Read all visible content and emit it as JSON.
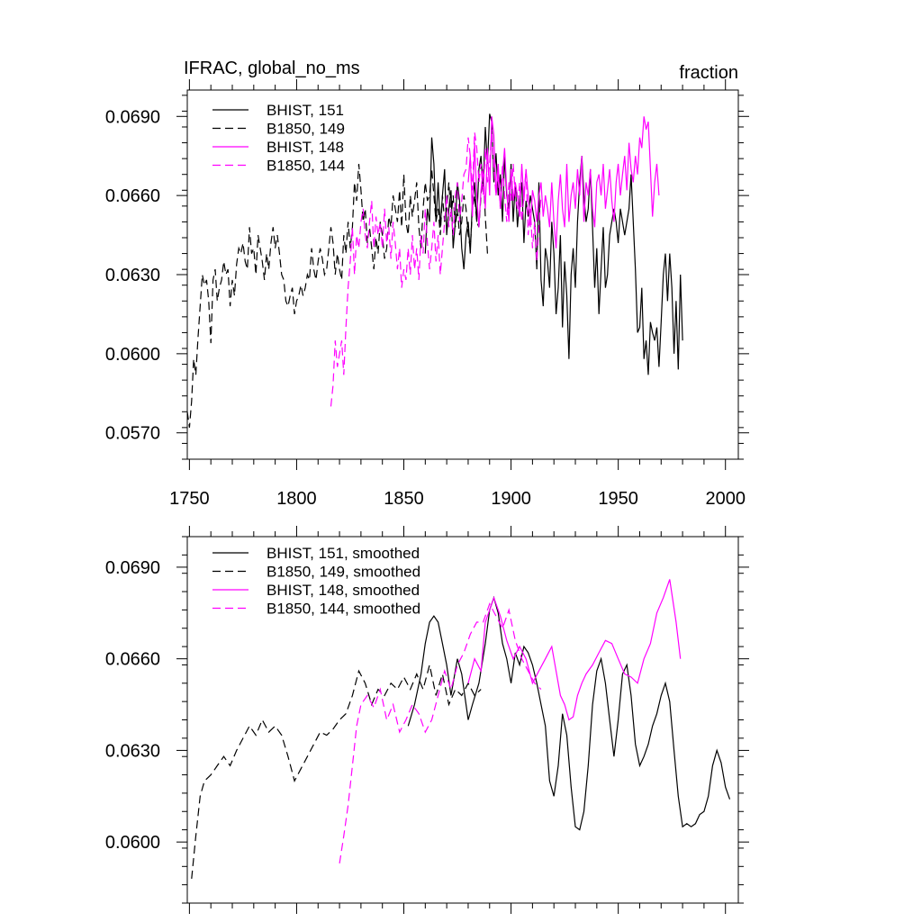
{
  "chart_data": [
    {
      "type": "line",
      "title_left": "IFRAC, global_no_ms",
      "title_right": "fraction",
      "xlabel": "",
      "ylabel": "",
      "xlim": [
        1749,
        2006
      ],
      "ylim": [
        0.056,
        0.07
      ],
      "xticks": [
        1750,
        1800,
        1850,
        1900,
        1950,
        2000
      ],
      "xtick_labels": [
        "1750",
        "1800",
        "1850",
        "1900",
        "1950",
        "2000"
      ],
      "yticks": [
        0.057,
        0.06,
        0.063,
        0.066,
        0.069
      ],
      "ytick_labels": [
        "0.0570",
        "0.0600",
        "0.0630",
        "0.0660",
        "0.0690"
      ],
      "legend_position": "top-left",
      "series": [
        {
          "name": "BHIST, 151",
          "color": "#000000",
          "dash": "solid",
          "x_start": 1860,
          "values": [
            0.0638,
            0.0655,
            0.065,
            0.0682,
            0.0672,
            0.065,
            0.0665,
            0.0648,
            0.066,
            0.067,
            0.0645,
            0.0655,
            0.0662,
            0.064,
            0.065,
            0.0665,
            0.0658,
            0.064,
            0.0632,
            0.0645,
            0.065,
            0.0638,
            0.0658,
            0.0665,
            0.065,
            0.067,
            0.0675,
            0.0662,
            0.0686,
            0.0672,
            0.0691,
            0.0688,
            0.0665,
            0.0676,
            0.066,
            0.0668,
            0.065,
            0.0675,
            0.066,
            0.0655,
            0.0672,
            0.065,
            0.0665,
            0.0648,
            0.0658,
            0.0665,
            0.0642,
            0.0658,
            0.0652,
            0.066,
            0.0655,
            0.065,
            0.0632,
            0.0665,
            0.0628,
            0.0618,
            0.064,
            0.0635,
            0.0625,
            0.065,
            0.0638,
            0.0615,
            0.0625,
            0.0645,
            0.061,
            0.0635,
            0.0622,
            0.0598,
            0.063,
            0.064,
            0.0625,
            0.065,
            0.0665,
            0.0675,
            0.066,
            0.065,
            0.0655,
            0.067,
            0.0648,
            0.0625,
            0.064,
            0.0615,
            0.0632,
            0.0648,
            0.0625,
            0.063,
            0.0645,
            0.065,
            0.0655,
            0.065,
            0.0642,
            0.0655,
            0.065,
            0.0645,
            0.065,
            0.0655,
            0.0668,
            0.065,
            0.0632,
            0.0608,
            0.061,
            0.0625,
            0.0598,
            0.0605,
            0.0592,
            0.0612,
            0.0608,
            0.0605,
            0.061,
            0.0595,
            0.0612,
            0.063,
            0.0638,
            0.062,
            0.0638,
            0.0625,
            0.06,
            0.062,
            0.0594,
            0.063,
            0.0605
          ]
        },
        {
          "name": "B1850, 149",
          "color": "#000000",
          "dash": "dash",
          "x_start": 1749,
          "values": [
            0.0578,
            0.0572,
            0.0582,
            0.0598,
            0.0592,
            0.0606,
            0.0618,
            0.063,
            0.0626,
            0.0628,
            0.062,
            0.0604,
            0.0628,
            0.0632,
            0.062,
            0.0625,
            0.0628,
            0.0635,
            0.063,
            0.0632,
            0.0618,
            0.0628,
            0.0622,
            0.0634,
            0.064,
            0.0638,
            0.0642,
            0.0635,
            0.0632,
            0.0648,
            0.0638,
            0.064,
            0.063,
            0.0645,
            0.064,
            0.0635,
            0.0628,
            0.0638,
            0.0632,
            0.0642,
            0.0648,
            0.064,
            0.0645,
            0.0638,
            0.063,
            0.0628,
            0.062,
            0.0618,
            0.0622,
            0.0625,
            0.0615,
            0.062,
            0.0622,
            0.0626,
            0.0622,
            0.0625,
            0.063,
            0.0628,
            0.064,
            0.0632,
            0.0628,
            0.0635,
            0.064,
            0.0636,
            0.063,
            0.0632,
            0.064,
            0.0648,
            0.0642,
            0.063,
            0.0638,
            0.0632,
            0.0628,
            0.0645,
            0.0638,
            0.065,
            0.064,
            0.0648,
            0.0665,
            0.0658,
            0.0672,
            0.0662,
            0.065,
            0.0655,
            0.0642,
            0.0648,
            0.064,
            0.0632,
            0.0644,
            0.0638,
            0.065,
            0.0645,
            0.0636,
            0.064,
            0.0652,
            0.0648,
            0.066,
            0.0655,
            0.065,
            0.0662,
            0.0648,
            0.0668,
            0.065,
            0.0645,
            0.066,
            0.0652,
            0.0658,
            0.0665,
            0.0648,
            0.064,
            0.0655,
            0.0665,
            0.0658,
            0.066,
            0.067,
            0.066,
            0.065,
            0.0655,
            0.0645,
            0.066,
            0.065,
            0.0655,
            0.0665,
            0.0652,
            0.066,
            0.0648,
            0.0655,
            0.0645,
            0.065,
            0.066,
            0.0655,
            0.0645,
            0.064,
            0.0655,
            0.066,
            0.065,
            0.0648,
            0.066,
            0.067,
            0.0652,
            0.0638
          ]
        },
        {
          "name": "BHIST, 148",
          "color": "#ff00ff",
          "dash": "solid",
          "x_start": 1880,
          "values": [
            0.0665,
            0.0675,
            0.0652,
            0.068,
            0.066,
            0.0648,
            0.0662,
            0.067,
            0.0655,
            0.0678,
            0.066,
            0.069,
            0.0683,
            0.066,
            0.0672,
            0.0655,
            0.0668,
            0.0678,
            0.0662,
            0.065,
            0.067,
            0.0658,
            0.0665,
            0.066,
            0.0652,
            0.0672,
            0.0658,
            0.067,
            0.066,
            0.0648,
            0.0662,
            0.0658,
            0.065,
            0.066,
            0.0665,
            0.0652,
            0.066,
            0.0655,
            0.0648,
            0.0665,
            0.065,
            0.064,
            0.0658,
            0.0668,
            0.0655,
            0.0648,
            0.0672,
            0.065,
            0.066,
            0.0665,
            0.0655,
            0.067,
            0.066,
            0.0675,
            0.065,
            0.0665,
            0.066,
            0.067,
            0.0655,
            0.0648,
            0.0665,
            0.0668,
            0.066,
            0.0672,
            0.0655,
            0.0662,
            0.067,
            0.0658,
            0.065,
            0.0665,
            0.0672,
            0.066,
            0.0668,
            0.0675,
            0.0662,
            0.068,
            0.067,
            0.0665,
            0.0675,
            0.0668,
            0.0682,
            0.0678,
            0.069,
            0.0685,
            0.0688,
            0.067,
            0.0652,
            0.0665,
            0.0672,
            0.066
          ]
        },
        {
          "name": "B1850, 144",
          "color": "#ff00ff",
          "dash": "dash",
          "x_start": 1816,
          "values": [
            0.058,
            0.0588,
            0.0605,
            0.0595,
            0.06,
            0.0605,
            0.0592,
            0.061,
            0.0625,
            0.0635,
            0.0648,
            0.063,
            0.0645,
            0.064,
            0.065,
            0.0655,
            0.0645,
            0.064,
            0.065,
            0.0658,
            0.064,
            0.0652,
            0.0645,
            0.065,
            0.064,
            0.0655,
            0.0642,
            0.0648,
            0.0636,
            0.065,
            0.0642,
            0.0632,
            0.064,
            0.0625,
            0.0632,
            0.0628,
            0.064,
            0.063,
            0.0645,
            0.0632,
            0.064,
            0.0628,
            0.0645,
            0.0638,
            0.0655,
            0.0642,
            0.0632,
            0.064,
            0.065,
            0.0635,
            0.0645,
            0.063,
            0.064,
            0.065,
            0.066,
            0.0648,
            0.0655,
            0.0645,
            0.066,
            0.0665,
            0.065,
            0.0658,
            0.0668,
            0.067,
            0.0682,
            0.0675,
            0.0662,
            0.0684,
            0.0678,
            0.0665,
            0.0672,
            0.066,
            0.0678,
            0.0665,
            0.0672,
            0.0685,
            0.067,
            0.066,
            0.0668,
            0.0655,
            0.0672,
            0.066,
            0.065,
            0.0665,
            0.0658,
            0.0672,
            0.066,
            0.0655,
            0.0665,
            0.065,
            0.066,
            0.067,
            0.0645,
            0.0655,
            0.064,
            0.065,
            0.0635,
            0.0648,
            0.066
          ]
        }
      ]
    },
    {
      "type": "line",
      "xlim": [
        1749,
        2006
      ],
      "ylim": [
        0.058,
        0.07
      ],
      "xticks": [
        1750,
        1800,
        1850,
        1900,
        1950,
        2000
      ],
      "yticks": [
        0.06,
        0.063,
        0.066,
        0.069
      ],
      "ytick_labels": [
        "0.0600",
        "0.0630",
        "0.0660",
        "0.0690"
      ],
      "legend_position": "top-left",
      "series": [
        {
          "name": "BHIST, 151, smoothed",
          "color": "#000000",
          "dash": "solid",
          "x": [
            1852,
            1855,
            1858,
            1860,
            1862,
            1864,
            1866,
            1868,
            1870,
            1872,
            1875,
            1877,
            1879,
            1880,
            1882,
            1885,
            1888,
            1890,
            1892,
            1894,
            1896,
            1898,
            1900,
            1902,
            1904,
            1906,
            1908,
            1910,
            1912,
            1914,
            1916,
            1918,
            1920,
            1922,
            1924,
            1926,
            1928,
            1930,
            1932,
            1934,
            1936,
            1938,
            1940,
            1942,
            1944,
            1946,
            1948,
            1950,
            1952,
            1954,
            1956,
            1958,
            1960,
            1962,
            1964,
            1966,
            1968,
            1970,
            1972,
            1974,
            1976,
            1978,
            1980,
            1982,
            1984,
            1986,
            1988,
            1990,
            1992,
            1994,
            1996,
            1998,
            2000,
            2002
          ],
          "values": [
            0.0638,
            0.0645,
            0.0655,
            0.0665,
            0.0672,
            0.0674,
            0.0672,
            0.0665,
            0.0658,
            0.0648,
            0.066,
            0.0655,
            0.0645,
            0.064,
            0.0645,
            0.0652,
            0.0665,
            0.0676,
            0.068,
            0.0675,
            0.0665,
            0.066,
            0.0652,
            0.0662,
            0.0658,
            0.0664,
            0.0662,
            0.0658,
            0.0652,
            0.0645,
            0.0638,
            0.062,
            0.0615,
            0.0625,
            0.0642,
            0.0635,
            0.0618,
            0.0605,
            0.0604,
            0.061,
            0.0625,
            0.0645,
            0.0656,
            0.066,
            0.0652,
            0.064,
            0.0628,
            0.064,
            0.0655,
            0.0658,
            0.0648,
            0.0632,
            0.0625,
            0.0628,
            0.0632,
            0.0638,
            0.0642,
            0.0648,
            0.0652,
            0.0646,
            0.063,
            0.0615,
            0.0605,
            0.0606,
            0.0605,
            0.0606,
            0.0609,
            0.061,
            0.0615,
            0.0625,
            0.063,
            0.0626,
            0.0618,
            0.0614
          ]
        },
        {
          "name": "B1850, 149, smoothed",
          "color": "#000000",
          "dash": "dash",
          "x": [
            1751,
            1753,
            1755,
            1757,
            1760,
            1763,
            1766,
            1769,
            1772,
            1775,
            1778,
            1781,
            1784,
            1787,
            1790,
            1793,
            1796,
            1799,
            1802,
            1805,
            1808,
            1811,
            1814,
            1817,
            1820,
            1823,
            1826,
            1829,
            1832,
            1835,
            1838,
            1841,
            1844,
            1847,
            1850,
            1853,
            1856,
            1859,
            1862,
            1865,
            1868,
            1871,
            1874,
            1877,
            1880,
            1883,
            1886
          ],
          "values": [
            0.0588,
            0.0602,
            0.0615,
            0.062,
            0.0622,
            0.0625,
            0.0628,
            0.0625,
            0.063,
            0.0634,
            0.0638,
            0.0635,
            0.064,
            0.0636,
            0.0638,
            0.0635,
            0.0628,
            0.062,
            0.0624,
            0.0628,
            0.0632,
            0.0636,
            0.0635,
            0.0637,
            0.064,
            0.0642,
            0.0648,
            0.0656,
            0.0652,
            0.0645,
            0.065,
            0.0648,
            0.0652,
            0.065,
            0.0654,
            0.065,
            0.0655,
            0.065,
            0.0658,
            0.0648,
            0.0655,
            0.0645,
            0.065,
            0.0648,
            0.0652,
            0.0648,
            0.065
          ]
        },
        {
          "name": "BHIST, 148, smoothed",
          "color": "#ff00ff",
          "dash": "solid",
          "x": [
            1880,
            1883,
            1886,
            1888,
            1890,
            1892,
            1895,
            1898,
            1901,
            1904,
            1907,
            1910,
            1913,
            1916,
            1919,
            1921,
            1923,
            1925,
            1927,
            1929,
            1931,
            1933,
            1935,
            1938,
            1941,
            1944,
            1947,
            1950,
            1953,
            1956,
            1959,
            1962,
            1965,
            1968,
            1971,
            1974,
            1977,
            1979
          ],
          "values": [
            0.0652,
            0.066,
            0.0656,
            0.0672,
            0.0676,
            0.068,
            0.0674,
            0.0666,
            0.066,
            0.0664,
            0.066,
            0.0652,
            0.0656,
            0.066,
            0.0664,
            0.0656,
            0.0648,
            0.0645,
            0.064,
            0.0641,
            0.0648,
            0.0652,
            0.0655,
            0.0658,
            0.0662,
            0.0666,
            0.0665,
            0.066,
            0.0655,
            0.0654,
            0.0652,
            0.066,
            0.0665,
            0.0675,
            0.068,
            0.0686,
            0.0672,
            0.066
          ]
        },
        {
          "name": "B1850, 144, smoothed",
          "color": "#ff00ff",
          "dash": "dash",
          "x": [
            1820,
            1822,
            1824,
            1826,
            1828,
            1830,
            1833,
            1836,
            1839,
            1842,
            1845,
            1848,
            1851,
            1854,
            1857,
            1860,
            1863,
            1866,
            1869,
            1872,
            1875,
            1878,
            1881,
            1884,
            1887,
            1890,
            1893,
            1896,
            1899,
            1902,
            1905,
            1908,
            1911,
            1914
          ],
          "values": [
            0.0593,
            0.0602,
            0.0612,
            0.0625,
            0.0638,
            0.0645,
            0.0648,
            0.0644,
            0.065,
            0.064,
            0.0645,
            0.0636,
            0.064,
            0.0645,
            0.0642,
            0.0636,
            0.064,
            0.0648,
            0.0656,
            0.065,
            0.0658,
            0.0662,
            0.0668,
            0.0672,
            0.0672,
            0.0678,
            0.0674,
            0.067,
            0.0676,
            0.0666,
            0.066,
            0.0656,
            0.0652,
            0.065
          ]
        }
      ]
    }
  ]
}
